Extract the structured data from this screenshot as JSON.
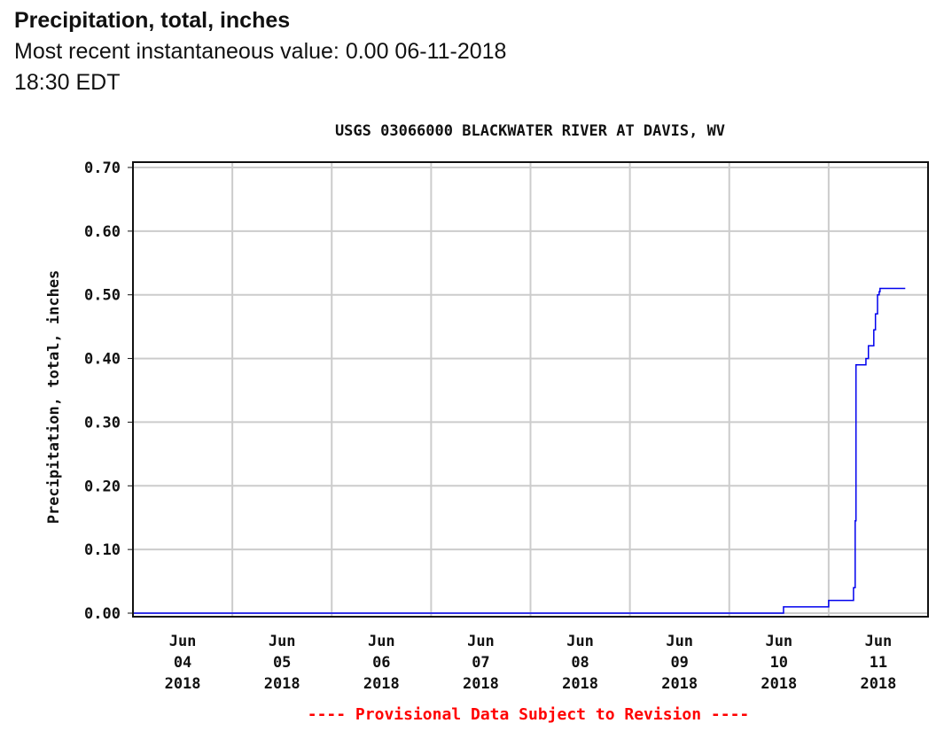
{
  "header": {
    "title": "Precipitation, total, inches",
    "recent_label": "Most recent instantaneous value: 0.00 06-11-2018   18:30 EDT"
  },
  "chart_data": {
    "type": "line",
    "title": "USGS 03066000 BLACKWATER RIVER AT DAVIS, WV",
    "ylabel": "Precipitation, total, inches",
    "xlabel": "",
    "ylim": [
      0,
      0.7
    ],
    "yticks": [
      "0.00",
      "0.10",
      "0.20",
      "0.30",
      "0.40",
      "0.50",
      "0.60",
      "0.70"
    ],
    "x_unit": "hours since Jun 04 2018 00:00",
    "xlim": [
      0,
      192
    ],
    "xticks": [
      {
        "month": "Jun",
        "day": "04",
        "year": "2018"
      },
      {
        "month": "Jun",
        "day": "05",
        "year": "2018"
      },
      {
        "month": "Jun",
        "day": "06",
        "year": "2018"
      },
      {
        "month": "Jun",
        "day": "07",
        "year": "2018"
      },
      {
        "month": "Jun",
        "day": "08",
        "year": "2018"
      },
      {
        "month": "Jun",
        "day": "09",
        "year": "2018"
      },
      {
        "month": "Jun",
        "day": "10",
        "year": "2018"
      },
      {
        "month": "Jun",
        "day": "11",
        "year": "2018"
      }
    ],
    "grid": true,
    "series": [
      {
        "name": "Precipitation, total",
        "color": "#0000ee",
        "step": true,
        "points": [
          [
            0,
            0.0
          ],
          [
            157.1,
            0.01
          ],
          [
            168,
            0.02
          ],
          [
            174,
            0.04
          ],
          [
            174.4,
            0.145
          ],
          [
            174.6,
            0.39
          ],
          [
            177,
            0.4
          ],
          [
            177.6,
            0.42
          ],
          [
            178.9,
            0.445
          ],
          [
            179.3,
            0.47
          ],
          [
            179.8,
            0.5
          ],
          [
            180.2,
            0.505
          ],
          [
            180.4,
            0.51
          ],
          [
            186.5,
            0.51
          ]
        ]
      }
    ],
    "footnote": "---- Provisional Data Subject to Revision ----",
    "footnote_color": "#ff0000"
  }
}
